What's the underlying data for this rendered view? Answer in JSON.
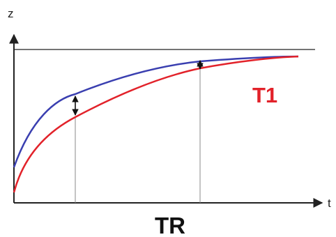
{
  "axes": {
    "y_label": "z",
    "x_label": "t"
  },
  "labels": {
    "tr": "TR",
    "t1": "T1"
  },
  "colors": {
    "curve_blue": "#3a3fb0",
    "curve_red": "#e2222a",
    "lines": "#222222",
    "guides": "#888888",
    "t1_text": "#e2222a"
  },
  "markers": {
    "double_arrows": 2,
    "guide_lines": 2
  }
}
